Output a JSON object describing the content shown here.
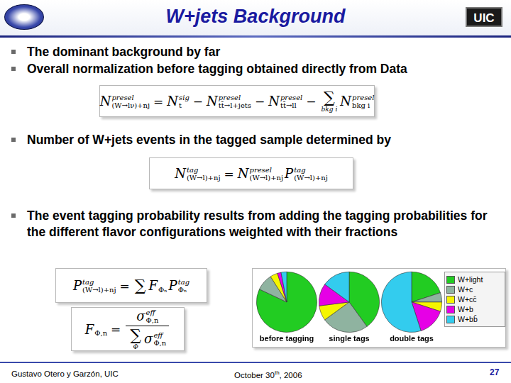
{
  "header": {
    "title": "W+jets Background",
    "logo_right": "UIC"
  },
  "bullets": [
    "The dominant background by far",
    "Overall normalization before tagging obtained directly from Data",
    "Number of W+jets events in the tagged sample determined by",
    "The event tagging probability results from adding the tagging probabilities for the different flavor configurations weighted with their fractions"
  ],
  "formulas": [
    [
      {
        "t": "N",
        "sup": "presel",
        "sub": "(W→lν)+nj"
      },
      {
        "t": "="
      },
      {
        "t": "N",
        "sup": "sig",
        "sub": "t"
      },
      {
        "t": "−"
      },
      {
        "t": "N",
        "sup": "presel",
        "sub": "tt̄→l+jets"
      },
      {
        "t": "−"
      },
      {
        "t": "N",
        "sup": "presel",
        "sub": "tt̄→ll"
      },
      {
        "t": "−"
      },
      {
        "t": "∑",
        "under": "bkg i"
      },
      {
        "t": "N",
        "sup": "presel",
        "sub": "bkg i"
      }
    ],
    [
      {
        "t": "N",
        "sup": "tag",
        "sub": "(W→l)+nj"
      },
      {
        "t": "="
      },
      {
        "t": "N",
        "sup": "presel",
        "sub": "(W→l)+nj"
      },
      {
        "t": "P",
        "sup": "tag",
        "sub": "(W→l)+nj"
      }
    ],
    [
      {
        "t": "P",
        "sup": "tag",
        "sub": "(W→l)+nj"
      },
      {
        "t": "="
      },
      {
        "t": "∑",
        "under": ""
      },
      {
        "t": "F",
        "sub": "Φₙ"
      },
      {
        "t": "P",
        "sup": "tag",
        "sub": "Φₙ"
      }
    ],
    [
      {
        "t": "F",
        "sub": "Φ,n"
      },
      {
        "t": "="
      },
      {
        "frac": {
          "num": [
            {
              "t": "σ",
              "sup": "eff",
              "sub": "Φ,n"
            }
          ],
          "den": [
            {
              "t": "∑",
              "under": "Φ"
            },
            {
              "t": "σ",
              "sup": "eff",
              "sub": "Φ,n"
            }
          ]
        }
      }
    ]
  ],
  "chart_data": [
    {
      "type": "pie",
      "title": "before tagging",
      "categories": [
        "W+light",
        "W+c",
        "W+cc̄",
        "W+b",
        "W+bb̄"
      ],
      "values": [
        82,
        9,
        4,
        2,
        3
      ],
      "colors": [
        "#22cc22",
        "#8fb3a0",
        "#f5f500",
        "#e600e6",
        "#33ccee"
      ],
      "legend": "right"
    },
    {
      "type": "pie",
      "title": "single tags",
      "categories": [
        "W+light",
        "W+c",
        "W+cc̄",
        "W+b",
        "W+bb̄"
      ],
      "values": [
        40,
        25,
        8,
        12,
        15
      ],
      "colors": [
        "#22cc22",
        "#8fb3a0",
        "#f5f500",
        "#e600e6",
        "#33ccee"
      ],
      "legend": "right"
    },
    {
      "type": "pie",
      "title": "double tags",
      "categories": [
        "W+light",
        "W+c",
        "W+cc̄",
        "W+b",
        "W+bb̄"
      ],
      "values": [
        20,
        5,
        5,
        15,
        55
      ],
      "colors": [
        "#22cc22",
        "#8fb3a0",
        "#f5f500",
        "#e600e6",
        "#33ccee"
      ],
      "legend": "right"
    }
  ],
  "footer": {
    "author": "Gustavo Otero y Garzón, UIC",
    "date": [
      "October 30",
      "th",
      ", 2006"
    ],
    "page": "27"
  }
}
